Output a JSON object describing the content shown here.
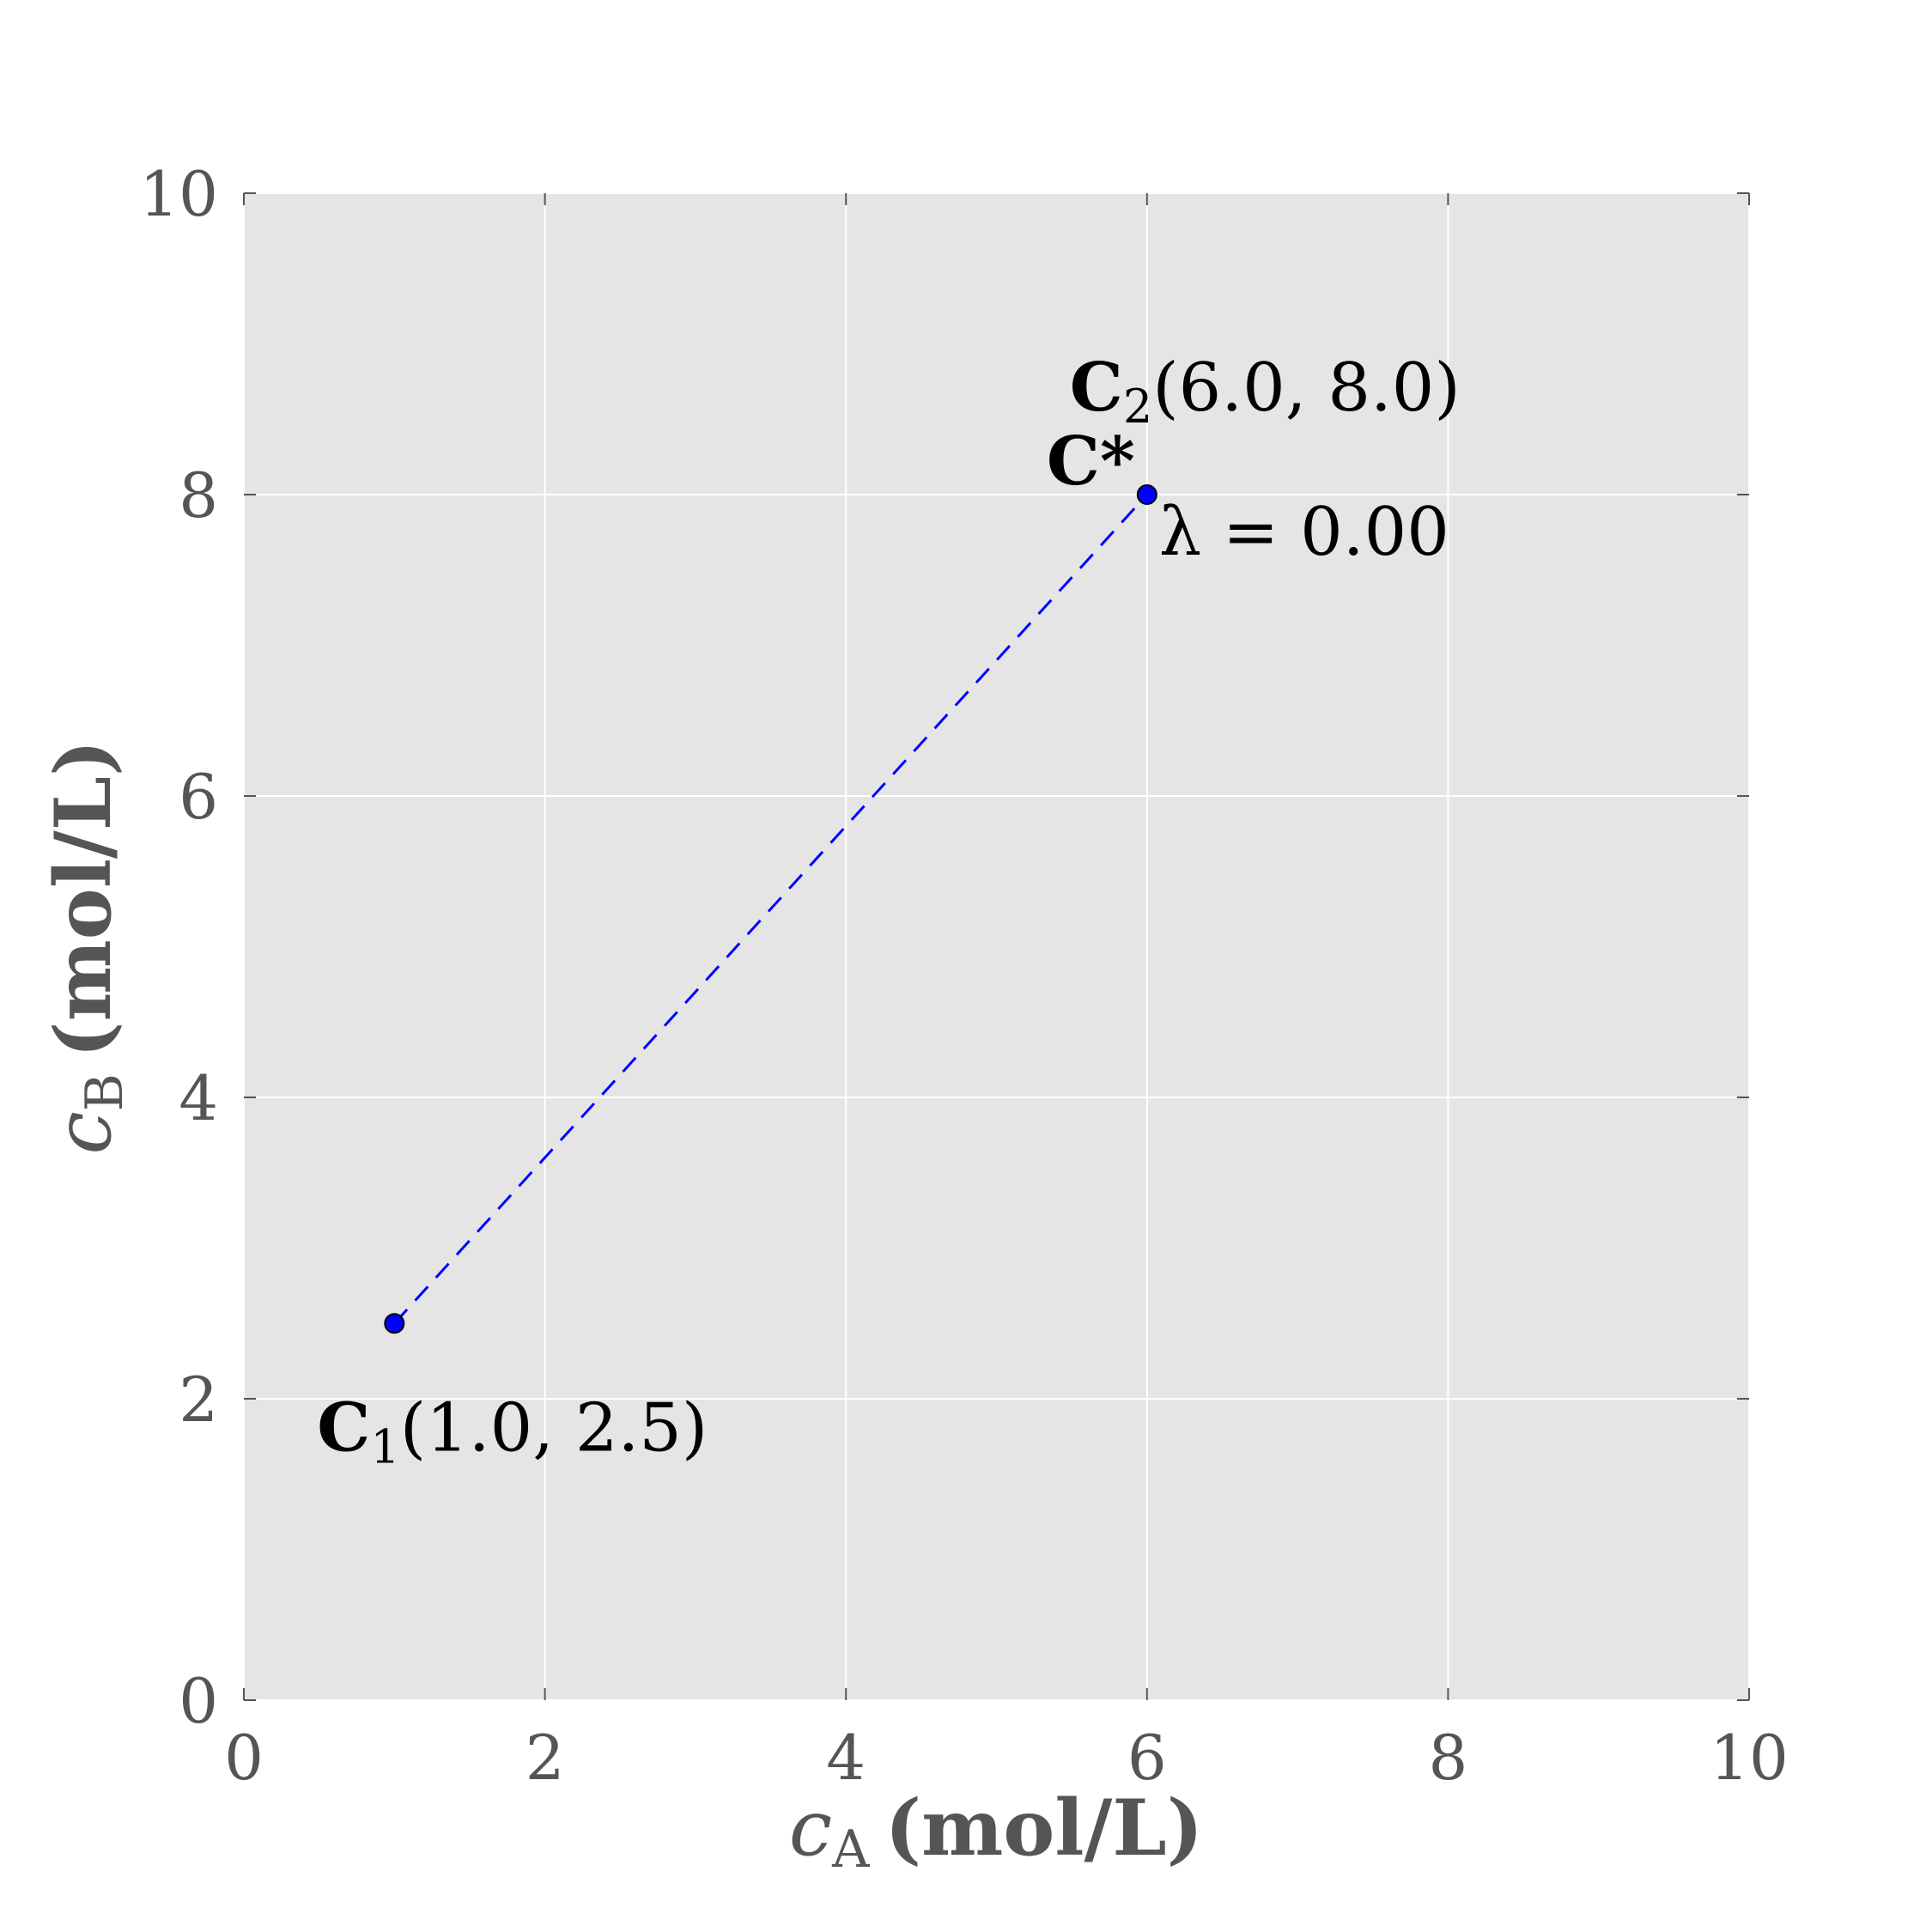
{
  "chart_data": {
    "type": "scatter",
    "title": "",
    "xlabel": {
      "var": "c",
      "sub": "A",
      "unit": "(mol/L)"
    },
    "ylabel": {
      "var": "c",
      "sub": "B",
      "unit": "(mol/L)"
    },
    "xlim": [
      0,
      10
    ],
    "ylim": [
      0,
      10
    ],
    "xticks": [
      0,
      2,
      4,
      6,
      8,
      10
    ],
    "yticks": [
      0,
      2,
      4,
      6,
      8,
      10
    ],
    "grid": true,
    "background": "#e5e5e5",
    "point_color": "#0000ff",
    "line_style": "dashed",
    "points": [
      {
        "name": "C",
        "sub": "1",
        "x": 1.0,
        "y": 2.5,
        "coords": "(1.0, 2.5)"
      },
      {
        "name": "C",
        "sub": "2",
        "x": 6.0,
        "y": 8.0,
        "coords": "(6.0, 8.0)"
      }
    ],
    "current_point": {
      "label": "C*",
      "x": 6.0,
      "y": 8.0
    },
    "lambda_label": "λ = 0.00"
  }
}
